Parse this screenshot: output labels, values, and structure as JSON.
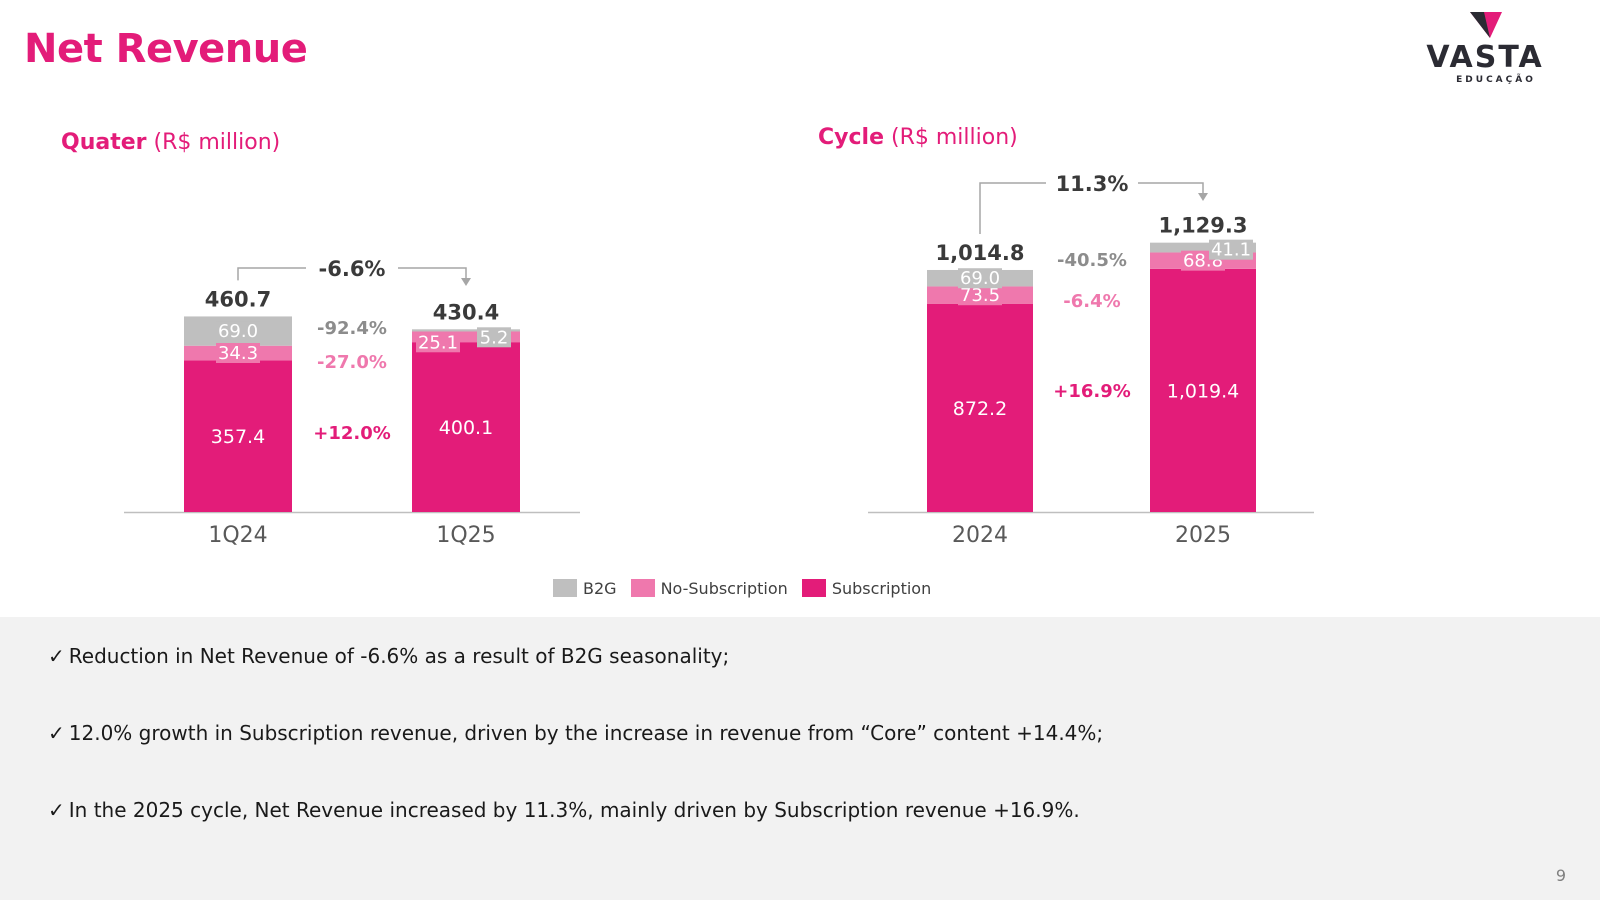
{
  "page": {
    "title": "Net Revenue",
    "page_number": "9"
  },
  "logo": {
    "name": "VASTA",
    "sub": "EDUCAÇÃO"
  },
  "colors": {
    "subscription": "#e31c79",
    "no_subscription": "#ef78ad",
    "b2g": "#bfbfbf",
    "text_dark": "#3a3a3a",
    "text_gray": "#8c8c8c"
  },
  "legend": [
    {
      "label": "B2G",
      "color": "#bfbfbf"
    },
    {
      "label": "No-Subscription",
      "color": "#ef78ad"
    },
    {
      "label": "Subscription",
      "color": "#e31c79"
    }
  ],
  "bullets": [
    "Reduction in Net Revenue of -6.6% as a result of B2G seasonality;",
    "12.0% growth in Subscription revenue, driven by the increase in revenue from “Core” content +14.4%;",
    "In the 2025 cycle, Net Revenue increased by 11.3%, mainly driven by Subscription revenue +16.9%."
  ],
  "check_mark": "✓",
  "chart_data": [
    {
      "type": "bar",
      "stacked": true,
      "title_bold": "Quater",
      "title_rest": " (R$ million)",
      "categories": [
        "1Q24",
        "1Q25"
      ],
      "ylim": [
        0,
        500
      ],
      "series": [
        {
          "name": "Subscription",
          "values": [
            357.4,
            400.1
          ],
          "labels": [
            "357.4",
            "400.1"
          ]
        },
        {
          "name": "No-Subscription",
          "values": [
            34.3,
            25.1
          ],
          "labels": [
            "34.3",
            "25.1"
          ]
        },
        {
          "name": "B2G",
          "values": [
            69.0,
            5.2
          ],
          "labels": [
            "69.0",
            "5.2"
          ]
        }
      ],
      "totals": [
        "460.7",
        "430.4"
      ],
      "total_change": "-6.6%",
      "series_changes": [
        {
          "series": "B2G",
          "label": "-92.4%"
        },
        {
          "series": "No-Subscription",
          "label": "-27.0%"
        },
        {
          "series": "Subscription",
          "label": "+12.0%"
        }
      ]
    },
    {
      "type": "bar",
      "stacked": true,
      "title_bold": "Cycle",
      "title_rest": " (R$ million)",
      "categories": [
        "2024",
        "2025"
      ],
      "ylim": [
        0,
        1250
      ],
      "series": [
        {
          "name": "Subscription",
          "values": [
            872.2,
            1019.4
          ],
          "labels": [
            "872.2",
            "1,019.4"
          ]
        },
        {
          "name": "No-Subscription",
          "values": [
            73.5,
            68.8
          ],
          "labels": [
            "73.5",
            "68.8"
          ]
        },
        {
          "name": "B2G",
          "values": [
            69.0,
            41.1
          ],
          "labels": [
            "69.0",
            "41.1"
          ]
        }
      ],
      "totals": [
        "1,014.8",
        "1,129.3"
      ],
      "total_change": "11.3%",
      "series_changes": [
        {
          "series": "B2G",
          "label": "-40.5%"
        },
        {
          "series": "No-Subscription",
          "label": "-6.4%"
        },
        {
          "series": "Subscription",
          "label": "+16.9%"
        }
      ]
    }
  ]
}
